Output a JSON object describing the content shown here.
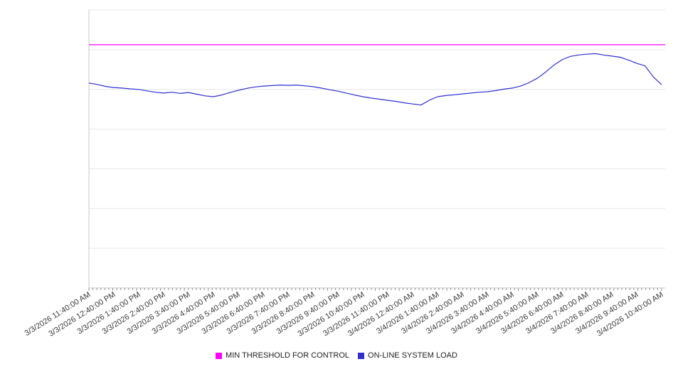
{
  "chart_data": {
    "type": "line",
    "title": "",
    "xlabel": "",
    "ylabel": "",
    "ylim": [
      0,
      100
    ],
    "y_axis_labels_visible": false,
    "grid": "horizontal",
    "legend_position": "bottom",
    "x_labels": [
      "3/3/2026 11:40:00 AM",
      "3/3/2026 12:40:00 PM",
      "3/3/2026 1:40:00 PM",
      "3/3/2026 2:40:00 PM",
      "3/3/2026 3:40:00 PM",
      "3/3/2026 4:40:00 PM",
      "3/3/2026 5:40:00 PM",
      "3/3/2026 6:40:00 PM",
      "3/3/2026 7:40:00 PM",
      "3/3/2026 8:40:00 PM",
      "3/3/2026 9:40:00 PM",
      "3/3/2026 10:40:00 PM",
      "3/3/2026 11:40:00 PM",
      "3/4/2026 12:40:00 AM",
      "3/4/2026 1:40:00 AM",
      "3/4/2026 2:40:00 AM",
      "3/4/2026 3:40:00 AM",
      "3/4/2026 4:40:00 AM",
      "3/4/2026 5:40:00 AM",
      "3/4/2026 6:40:00 AM",
      "3/4/2026 7:40:00 AM",
      "3/4/2026 8:40:00 AM",
      "3/4/2026 9:40:00 AM",
      "3/4/2026 10:40:00 AM"
    ],
    "series": [
      {
        "name": "MIN THRESHOLD FOR CONTROL",
        "type": "constant-line",
        "color": "#ff00ff",
        "value": 87.5
      },
      {
        "name": "ON-LINE SYSTEM LOAD",
        "type": "line",
        "color": "#3030d0",
        "sampling": "3 points per hour, evenly spaced from first to last x label",
        "values": [
          73.7,
          73.2,
          72.5,
          72.1,
          71.9,
          71.6,
          71.4,
          70.9,
          70.4,
          70.1,
          70.4,
          70.0,
          70.3,
          69.7,
          69.1,
          68.8,
          69.4,
          70.3,
          71.1,
          71.8,
          72.3,
          72.6,
          72.8,
          73.0,
          72.9,
          73.0,
          72.7,
          72.4,
          71.9,
          71.3,
          70.8,
          70.1,
          69.4,
          68.8,
          68.3,
          67.9,
          67.5,
          67.1,
          66.6,
          66.2,
          65.8,
          67.5,
          68.8,
          69.2,
          69.5,
          69.8,
          70.1,
          70.4,
          70.6,
          71.0,
          71.5,
          71.9,
          72.6,
          73.8,
          75.4,
          77.6,
          80.1,
          82.1,
          83.3,
          83.8,
          84.1,
          84.3,
          83.8,
          83.4,
          83.0,
          82.0,
          80.8,
          79.9,
          75.9,
          73.1
        ]
      }
    ]
  }
}
